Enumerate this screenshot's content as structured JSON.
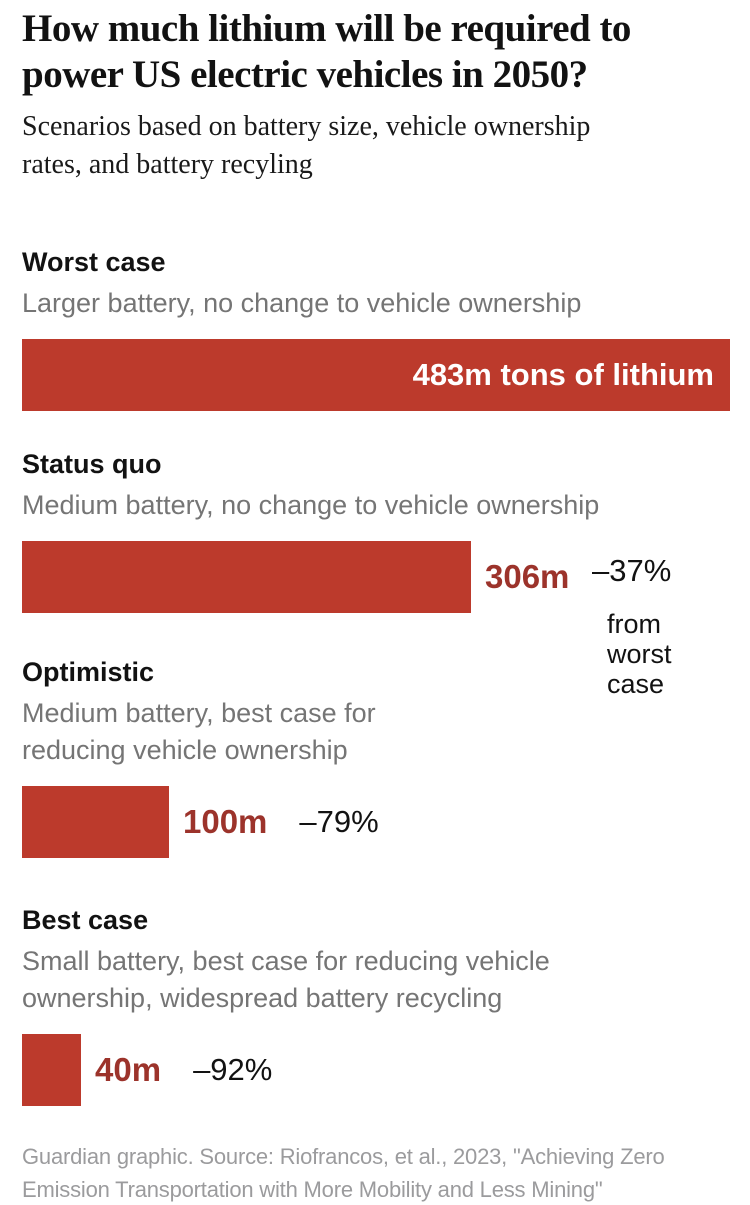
{
  "header": {
    "title_lines": [
      "How much lithium will be required to",
      "power US electric vehicles in 2050?"
    ],
    "subtitle_lines": [
      "Scenarios based on battery size, vehicle ownership",
      "rates, and battery recyling"
    ]
  },
  "scenarios": [
    {
      "name": "Worst case",
      "desc_lines": [
        "Larger battery, no change to vehicle ownership"
      ],
      "bar_label": "483m tons of lithium",
      "value": 483
    },
    {
      "name": "Status quo",
      "desc_lines": [
        "Medium battery, no change to vehicle ownership"
      ],
      "value_label": "306m",
      "value": 306
    },
    {
      "name": "Optimistic",
      "desc_lines": [
        "Medium battery, best case for",
        "reducing vehicle ownership"
      ],
      "value_label": "100m",
      "pct_label": "–79%",
      "value": 100
    },
    {
      "name": "Best case",
      "desc_lines": [
        "Small battery, best case for reducing vehicle",
        "ownership, widespread battery recycling"
      ],
      "value_label": "40m",
      "pct_label": "–92%",
      "value": 40
    }
  ],
  "note": {
    "pct": "–37%",
    "qualifier_lines": [
      "from",
      "worst",
      "case"
    ]
  },
  "footer": {
    "source_lines": [
      "Guardian graphic. Source: Riofrancos, et al., 2023, \"Achieving Zero",
      "Emission Transportation with More Mobility and Less Mining\""
    ]
  },
  "colors": {
    "bar": "#bc3a2c",
    "value_text": "#9c332b",
    "text": "#121212",
    "muted": "#757575",
    "footer": "#9b9b9d"
  },
  "chart_data": {
    "type": "bar",
    "orientation": "horizontal",
    "title": "How much lithium will be required to power US electric vehicles in 2050?",
    "subtitle": "Scenarios based on battery size, vehicle ownership rates, and battery recyling",
    "categories": [
      "Worst case",
      "Status quo",
      "Optimistic",
      "Best case"
    ],
    "category_descriptions": [
      "Larger battery, no change to vehicle ownership",
      "Medium battery, no change to vehicle ownership",
      "Medium battery, best case for reducing vehicle ownership",
      "Small battery, best case for reducing vehicle ownership, widespread battery recycling"
    ],
    "values": [
      483,
      306,
      100,
      40
    ],
    "unit": "million tons of lithium",
    "value_labels": [
      "483m tons of lithium",
      "306m",
      "100m",
      "40m"
    ],
    "pct_change_from_worst": [
      null,
      "–37%",
      "–79%",
      "–92%"
    ],
    "xlim": [
      0,
      483
    ],
    "grid": false,
    "legend": false,
    "source": "Guardian graphic. Source: Riofrancos, et al., 2023, \"Achieving Zero Emission Transportation with More Mobility and Less Mining\""
  }
}
